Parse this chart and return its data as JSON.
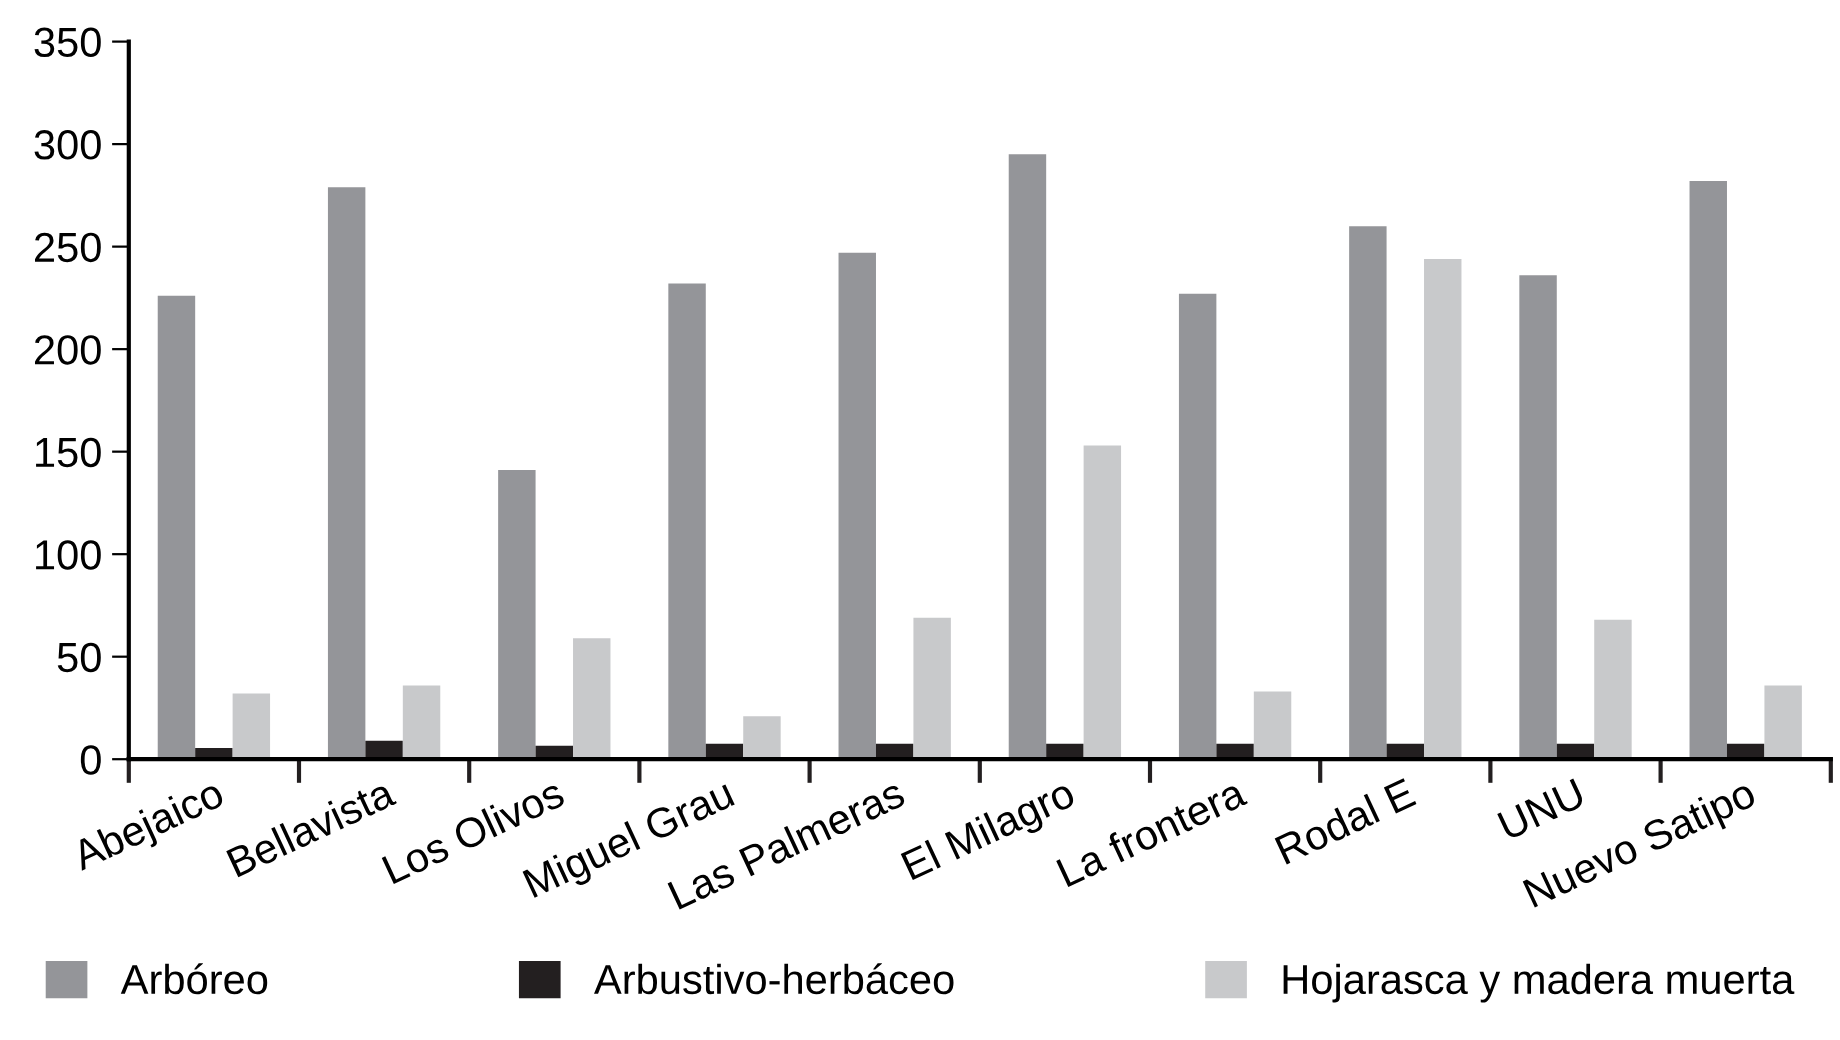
{
  "chart_data": {
    "type": "bar",
    "categories": [
      "Abejaico",
      "Bellavista",
      "Los Olivos",
      "Miguel Grau",
      "Las Palmeras",
      "El Milagro",
      "La frontera",
      "Rodal E",
      "UNU",
      "Nuevo Satipo"
    ],
    "series": [
      {
        "name": "Arbóreo",
        "color": "#949599",
        "values": [
          226,
          279,
          141,
          232,
          247,
          295,
          227,
          260,
          236,
          282
        ]
      },
      {
        "name": "Arbustivo-herbáceo",
        "color": "#231f20",
        "values": [
          5.5,
          9,
          6.5,
          7.5,
          7.5,
          7.5,
          7.5,
          7.5,
          7.5,
          7.5
        ]
      },
      {
        "name": "Hojarasca y madera muerta",
        "color": "#c8c9cb",
        "values": [
          32,
          36,
          59,
          21,
          69,
          153,
          33,
          244,
          68,
          36
        ]
      }
    ],
    "ylim": [
      0,
      350
    ],
    "yticks": [
      0,
      50,
      100,
      150,
      200,
      250,
      300,
      350
    ],
    "grid": false,
    "legend": "bottom"
  }
}
